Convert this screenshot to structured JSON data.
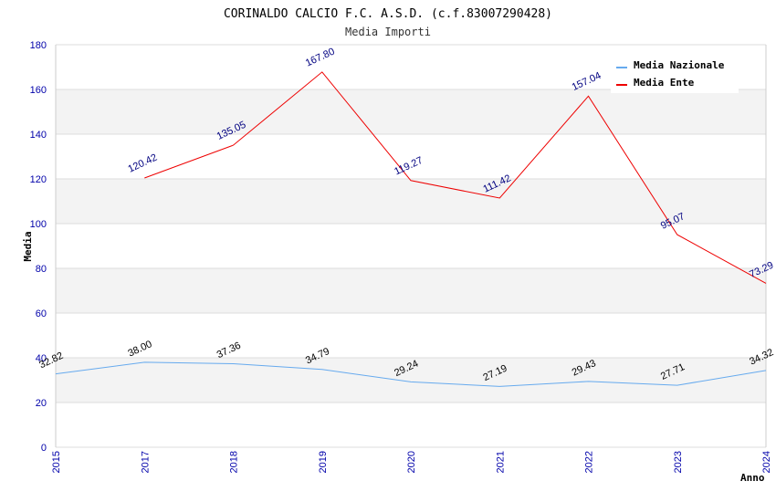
{
  "chart_data": {
    "type": "line",
    "title": "CORINALDO CALCIO F.C. A.S.D. (c.f.83007290428)",
    "subtitle": "Media Importi",
    "xlabel": "Anno",
    "ylabel": "Media",
    "ylim": [
      0,
      180
    ],
    "yticks": [
      "0",
      "20",
      "40",
      "60",
      "80",
      "100",
      "120",
      "140",
      "160",
      "180"
    ],
    "categories": [
      "2015",
      "2017",
      "2018",
      "2019",
      "2020",
      "2021",
      "2022",
      "2023",
      "2024"
    ],
    "legend_position": "top-right",
    "grid": true,
    "series": [
      {
        "name": "Media Nazionale",
        "color": "#66aaee",
        "label_color": "#000000",
        "values": [
          32.82,
          38.0,
          37.36,
          34.79,
          29.24,
          27.19,
          29.43,
          27.71,
          34.32
        ],
        "labels": [
          "32.82",
          "38.00",
          "37.36",
          "34.79",
          "29.24",
          "27.19",
          "29.43",
          "27.71",
          "34.32"
        ]
      },
      {
        "name": "Media Ente",
        "color": "#ee0000",
        "label_color": "#000080",
        "values": [
          null,
          120.42,
          135.05,
          167.8,
          119.27,
          111.42,
          157.04,
          95.07,
          73.29
        ],
        "labels": [
          "",
          "120.42",
          "135.05",
          "167.80",
          "119.27",
          "111.42",
          "157.04",
          "95.07",
          "73.29"
        ]
      }
    ]
  }
}
